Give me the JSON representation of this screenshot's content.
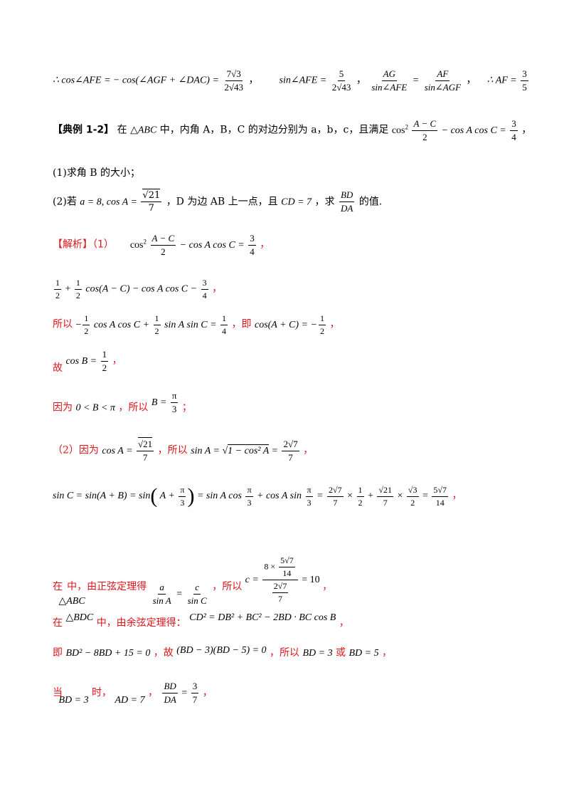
{
  "line1": {
    "formula_a": "∴ cos∠AFE = − cos(∠AGF + ∠DAC) = ",
    "frac_a_num": "7√3",
    "frac_a_den": "2√43",
    "sep1": "，",
    "formula_b": "sin∠AFE = ",
    "frac_b_num": "5",
    "frac_b_den": "2√43",
    "sep2": "，",
    "frac_c_num": "AG",
    "frac_c_den": "sin∠AFE",
    "eq": " = ",
    "frac_d_num": "AF",
    "frac_d_den": "sin∠AGF",
    "sep3": "，",
    "formula_e": "∴ AF = ",
    "frac_e_num": "3",
    "frac_e_den": "5"
  },
  "example": {
    "label": "【典例 1-2】",
    "text1": "在",
    "triangle": "△ABC",
    "text2": "中，内角 A，B，C 的对边分别为 a，b，c，且满足",
    "cond_pre": "cos",
    "cond_sup": "2",
    "cond_frac_num": "A − C",
    "cond_frac_den": "2",
    "cond_mid": " − cos A cos C = ",
    "cond_rhs_num": "3",
    "cond_rhs_den": "4",
    "end": "，"
  },
  "q1": "(1)求角 B 的大小；",
  "q2": {
    "pre": "(2)若",
    "a_val": "a = 8,   cos A = ",
    "frac_num": "√21",
    "frac_den": "7",
    "mid": "，D 为边 AB 上一点，且",
    "cd": "CD = 7",
    "mid2": "，求",
    "ratio_num": "BD",
    "ratio_den": "DA",
    "end": "的值."
  },
  "solution": {
    "label": "【解析】（1）",
    "s1_pre": "cos",
    "s1_sup": "2",
    "s1_frac_num": "A − C",
    "s1_frac_den": "2",
    "s1_mid": " − cos A cos C = ",
    "s1_rhs_num": "3",
    "s1_rhs_den": "4",
    "s1_end": "，",
    "s2_mid1": " + ",
    "s2_mid2": "cos(A − C) − cos A cos C − ",
    "s2_end": "，",
    "s3_pre": "所以",
    "s3_mid1": "cos A cos C + ",
    "s3_mid2": "sin A sin C = ",
    "s3_text": "，即",
    "s3_rhs": "cos(A + C) = −",
    "s3_end": "，",
    "s4_pre": "故",
    "s4_formula": "cos B = ",
    "s4_end": "，",
    "s5_pre": "因为",
    "s5_range": "0 < B < π",
    "s5_text": "，所以",
    "s5_formula": "B = ",
    "s5_frac_num": "π",
    "s5_frac_den": "3",
    "s5_end": "；",
    "p2_pre": "（2）因为",
    "p2_cos": "cos A = ",
    "p2_text": "，所以",
    "p2_sin": "sin A = ",
    "p2_sqrt": "1 − cos² A",
    "p2_eq": " = ",
    "p2_end": "，",
    "sinc_a": "sin C = sin(A + B) = sin",
    "sinc_inner": "A + ",
    "sinc_b": " = sin A cos ",
    "sinc_c": " + cos A sin ",
    "sinc_d": " = ",
    "times": " × ",
    "plus": " + ",
    "eq": " = ",
    "sinc_end": "，",
    "law_pre": "在",
    "law_tri": "△ABC",
    "law_text": "中，由正弦定理得",
    "law_frac1_num": "a",
    "law_frac1_den": "sin A",
    "law_frac2_num": "c",
    "law_frac2_den": "sin C",
    "law_text2": "，所以",
    "law_c": "c = ",
    "law_c_top_pre": "8 × ",
    "law_c_eq": " = 10",
    "law_end": "，",
    "cos_pre": "在",
    "cos_tri": "△BDC",
    "cos_text": "中，由余弦定理得：",
    "cos_formula_html": "CD² = DB² + BC² − 2BD · BC cos B",
    "cos_end": "，",
    "sol_pre": "即",
    "sol_eq": "BD² − 8BD + 15 = 0",
    "sol_text1": "，故",
    "sol_fact": "(BD − 3)(BD − 5) = 0",
    "sol_text2": "，所以",
    "sol_r1": "BD = 3",
    "sol_or": "或",
    "sol_r2": "BD = 5",
    "sol_end": "，",
    "when_pre": "当",
    "when_bd": "BD = 3",
    "when_text": "时，",
    "when_ad": "AD = 7",
    "when_sep": "，",
    "when_frac_num": "BD",
    "when_frac_den": "DA",
    "when_eq": " = ",
    "when_res_num": "3",
    "when_res_den": "7",
    "when_end": "，"
  },
  "nums": {
    "half": "1",
    "two": "2",
    "three": "3",
    "four": "4",
    "seven": "7",
    "fourteen": "14",
    "pi": "π",
    "two_sqrt7": "2√7",
    "sqrt21": "√21",
    "sqrt3": "√3",
    "five_sqrt7": "5√7"
  }
}
